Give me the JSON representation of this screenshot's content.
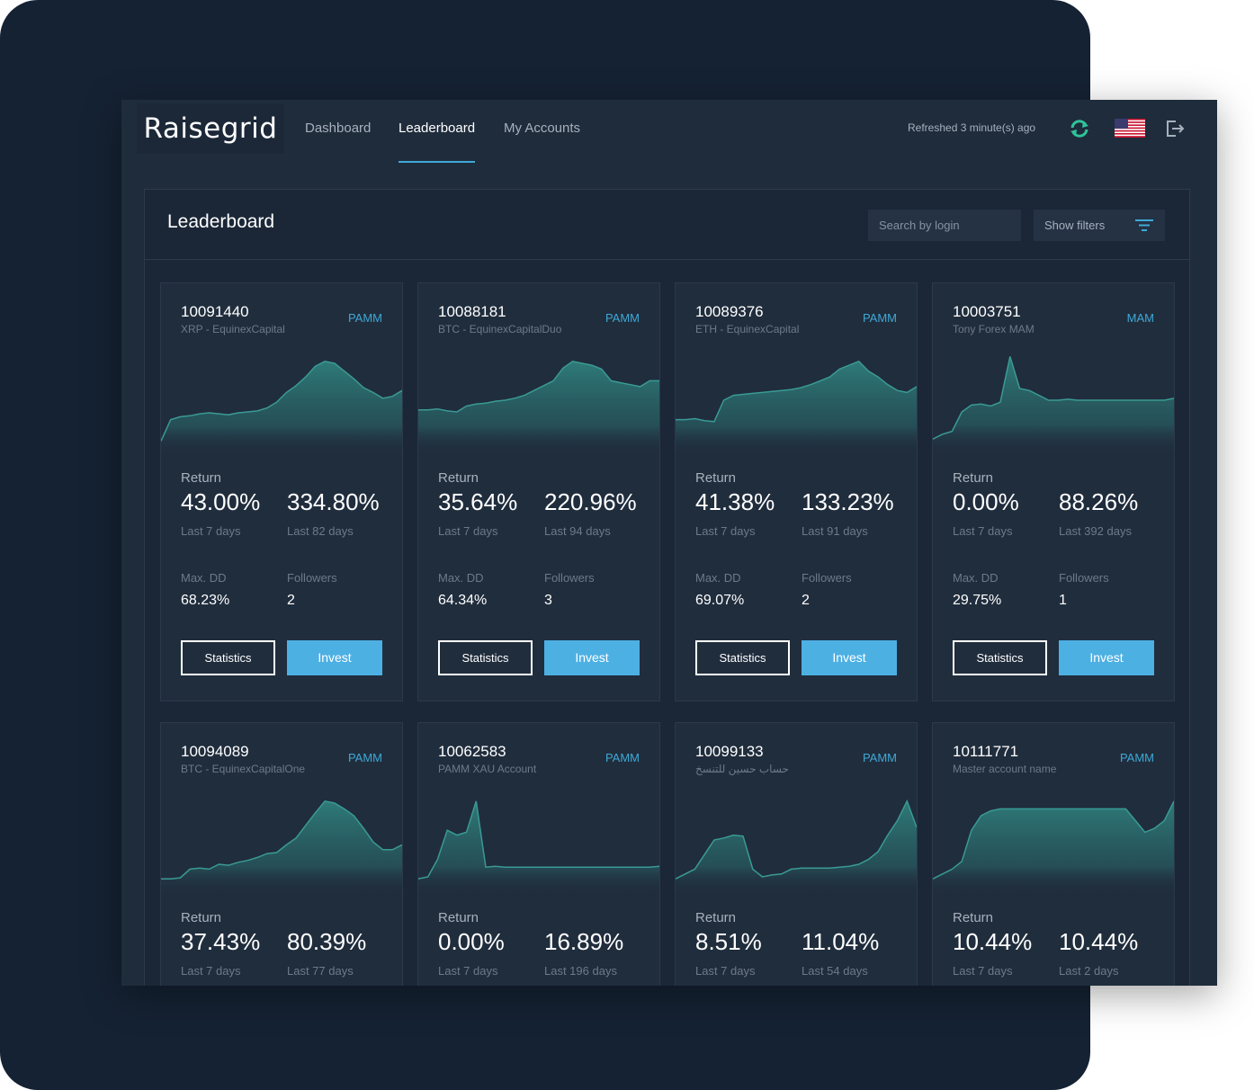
{
  "app": {
    "logo": "Raisegrid",
    "nav": [
      {
        "label": "Dashboard",
        "active": false
      },
      {
        "label": "Leaderboard",
        "active": true
      },
      {
        "label": "My Accounts",
        "active": false
      }
    ],
    "refreshed": "Refreshed 3 minute(s) ago",
    "icons": {
      "refresh": "refresh-icon",
      "flag": "us-flag-icon",
      "logout": "logout-icon",
      "filter": "filter-icon"
    },
    "colors": {
      "accent": "#3fa9d6",
      "invest": "#4db0e3",
      "chart": "#2f7f7c",
      "background": "#1f2c3c"
    }
  },
  "board": {
    "title": "Leaderboard",
    "search_placeholder": "Search by login",
    "filters_label": "Show filters"
  },
  "cards": [
    {
      "id": "10091440",
      "name": "XRP - EquinexCapital",
      "type": "PAMM",
      "return_label": "Return",
      "ret7": "43.00%",
      "ret7_label": "Last 7 days",
      "ret_total": "334.80%",
      "ret_total_label": "Last 82 days",
      "maxdd_label": "Max. DD",
      "maxdd": "68.23%",
      "followers_label": "Followers",
      "followers": "2",
      "stats_label": "Statistics",
      "invest_label": "Invest"
    },
    {
      "id": "10088181",
      "name": "BTC - EquinexCapitalDuo",
      "type": "PAMM",
      "return_label": "Return",
      "ret7": "35.64%",
      "ret7_label": "Last 7 days",
      "ret_total": "220.96%",
      "ret_total_label": "Last 94 days",
      "maxdd_label": "Max. DD",
      "maxdd": "64.34%",
      "followers_label": "Followers",
      "followers": "3",
      "stats_label": "Statistics",
      "invest_label": "Invest"
    },
    {
      "id": "10089376",
      "name": "ETH - EquinexCapital",
      "type": "PAMM",
      "return_label": "Return",
      "ret7": "41.38%",
      "ret7_label": "Last 7 days",
      "ret_total": "133.23%",
      "ret_total_label": "Last 91 days",
      "maxdd_label": "Max. DD",
      "maxdd": "69.07%",
      "followers_label": "Followers",
      "followers": "2",
      "stats_label": "Statistics",
      "invest_label": "Invest"
    },
    {
      "id": "10003751",
      "name": "Tony Forex MAM",
      "type": "MAM",
      "return_label": "Return",
      "ret7": "0.00%",
      "ret7_label": "Last 7 days",
      "ret_total": "88.26%",
      "ret_total_label": "Last 392 days",
      "maxdd_label": "Max. DD",
      "maxdd": "29.75%",
      "followers_label": "Followers",
      "followers": "1",
      "stats_label": "Statistics",
      "invest_label": "Invest"
    },
    {
      "id": "10094089",
      "name": "BTC - EquinexCapitalOne",
      "type": "PAMM",
      "return_label": "Return",
      "ret7": "37.43%",
      "ret7_label": "Last 7 days",
      "ret_total": "80.39%",
      "ret_total_label": "Last 77 days"
    },
    {
      "id": "10062583",
      "name": "PAMM XAU Account",
      "type": "PAMM",
      "return_label": "Return",
      "ret7": "0.00%",
      "ret7_label": "Last 7 days",
      "ret_total": "16.89%",
      "ret_total_label": "Last 196 days"
    },
    {
      "id": "10099133",
      "name": "حساب حسين للتنسخ",
      "type": "PAMM",
      "return_label": "Return",
      "ret7": "8.51%",
      "ret7_label": "Last 7 days",
      "ret_total": "11.04%",
      "ret_total_label": "Last 54 days"
    },
    {
      "id": "10111771",
      "name": "Master account name",
      "type": "PAMM",
      "return_label": "Return",
      "ret7": "10.44%",
      "ret7_label": "Last 7 days",
      "ret_total": "10.44%",
      "ret_total_label": "Last 2 days"
    }
  ],
  "sparklines": [
    [
      8,
      30,
      33,
      34,
      36,
      37,
      36,
      35,
      37,
      38,
      39,
      42,
      48,
      58,
      65,
      74,
      85,
      90,
      88,
      80,
      72,
      63,
      58,
      52,
      54,
      60
    ],
    [
      40,
      40,
      41,
      39,
      38,
      44,
      46,
      47,
      49,
      50,
      52,
      55,
      60,
      65,
      70,
      83,
      90,
      88,
      86,
      82,
      70,
      68,
      66,
      64,
      70,
      70
    ],
    [
      30,
      30,
      31,
      29,
      28,
      50,
      55,
      56,
      57,
      58,
      59,
      60,
      61,
      63,
      66,
      70,
      74,
      82,
      86,
      90,
      80,
      74,
      66,
      60,
      58,
      64
    ],
    [
      10,
      15,
      18,
      38,
      45,
      46,
      44,
      48,
      95,
      62,
      60,
      55,
      50,
      50,
      51,
      50,
      50,
      50,
      50,
      50,
      50,
      50,
      50,
      50,
      50,
      52
    ],
    [
      10,
      10,
      11,
      20,
      21,
      20,
      25,
      24,
      27,
      29,
      32,
      36,
      37,
      45,
      52,
      65,
      78,
      90,
      88,
      82,
      75,
      62,
      48,
      40,
      40,
      45
    ],
    [
      10,
      12,
      30,
      60,
      55,
      58,
      90,
      22,
      23,
      22,
      22,
      22,
      22,
      22,
      22,
      22,
      22,
      22,
      22,
      22,
      22,
      22,
      22,
      22,
      22,
      23
    ],
    [
      10,
      15,
      20,
      35,
      50,
      52,
      55,
      54,
      20,
      12,
      14,
      15,
      20,
      21,
      21,
      21,
      21,
      22,
      23,
      25,
      30,
      38,
      55,
      70,
      90,
      63
    ],
    [
      10,
      15,
      20,
      28,
      60,
      75,
      80,
      82,
      82,
      82,
      82,
      82,
      82,
      82,
      82,
      82,
      82,
      82,
      82,
      82,
      82,
      70,
      58,
      62,
      70,
      90
    ]
  ]
}
